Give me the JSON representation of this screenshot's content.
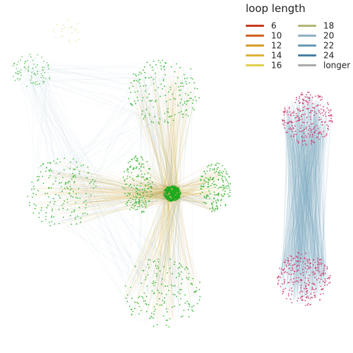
{
  "legend": {
    "title": "loop length",
    "items": [
      {
        "label": "6",
        "color": "#c8391d"
      },
      {
        "label": "10",
        "color": "#d2601f"
      },
      {
        "label": "12",
        "color": "#d79c2a"
      },
      {
        "label": "14",
        "color": "#deb237"
      },
      {
        "label": "16",
        "color": "#e0cf4b"
      },
      {
        "label": "18",
        "color": "#b1b774"
      },
      {
        "label": "20",
        "color": "#8fb1c4"
      },
      {
        "label": "22",
        "color": "#6a97b4"
      },
      {
        "label": "24",
        "color": "#4a7fa6"
      },
      {
        "label": "longer",
        "color": "#aaaaaa"
      }
    ]
  },
  "colors": {
    "node_green": "#2db52d",
    "hub_green": "#1faa1f",
    "node_pink": "#d3336d",
    "edge_blue": "#7fa8c0",
    "edge_orange": "#d99a3a",
    "edge_yellow": "#dccf5a"
  }
}
